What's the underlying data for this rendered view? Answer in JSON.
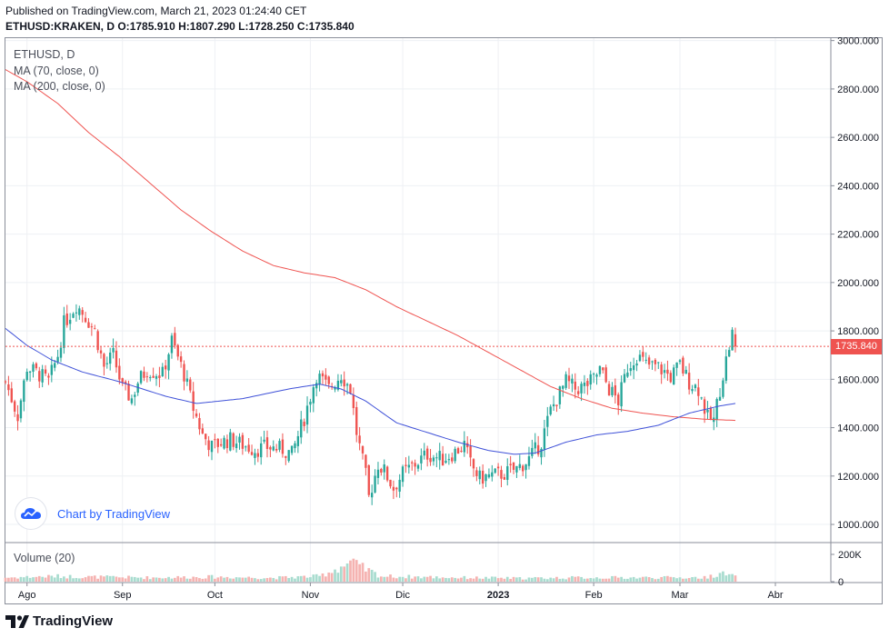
{
  "header": {
    "published": "Published on TradingView.com, March 21, 2023 01:24:40 CET",
    "symbol": "ETHUSD:KRAKEN, D",
    "open_label": "O:",
    "open": "1785.910",
    "high_label": "H:",
    "high": "1807.290",
    "low_label": "L:",
    "low": "1728.250",
    "close_label": "C:",
    "close": "1735.840"
  },
  "legend": {
    "symbol": "ETHUSD, D",
    "ma70": "MA (70, close, 0)",
    "ma200": "MA (200, close, 0)",
    "volume": "Volume (20)"
  },
  "price_tag": "1735.840",
  "badge": {
    "text": "Chart by TradingView",
    "icon": "tradingview-cloud-icon"
  },
  "footer": {
    "brand": "TradingView",
    "icon": "tradingview-logo-icon"
  },
  "colors": {
    "up": "#26a69a",
    "down": "#ef5350",
    "ma70": "#3f51d8",
    "ma200": "#ef5350",
    "current_line": "#ef5350"
  },
  "chart_data": {
    "type": "candlestick",
    "y_axis": {
      "ticks": [
        1000,
        1200,
        1400,
        1600,
        1800,
        2000,
        2200,
        2400,
        2600,
        2800,
        3000
      ],
      "tick_labels": [
        "1000.000",
        "1200.000",
        "1400.000",
        "1600.000",
        "1800.000",
        "2000.000",
        "2200.000",
        "2400.000",
        "2600.000",
        "2800.000",
        "3000.000"
      ],
      "ylim": [
        925,
        3010
      ]
    },
    "x_axis": {
      "labels": [
        "Ago",
        "Sep",
        "Oct",
        "Nov",
        "Dic",
        "2023",
        "Feb",
        "Mar",
        "Abr"
      ],
      "label_days": [
        0,
        31,
        61,
        92,
        122,
        153,
        184,
        212,
        243
      ],
      "xlim": [
        -7,
        261
      ]
    },
    "volume_axis": {
      "ticks": [
        0,
        200000
      ],
      "tick_labels": [
        "0",
        "200K"
      ],
      "ylim": [
        0,
        240000
      ]
    },
    "current_price": 1735.84,
    "anchors": [
      [
        -7,
        1590
      ],
      [
        -3,
        1450
      ],
      [
        0,
        1650
      ],
      [
        4,
        1620
      ],
      [
        7,
        1590
      ],
      [
        10,
        1700
      ],
      [
        12,
        1830
      ],
      [
        16,
        1910
      ],
      [
        19,
        1860
      ],
      [
        22,
        1800
      ],
      [
        25,
        1650
      ],
      [
        28,
        1700
      ],
      [
        31,
        1560
      ],
      [
        34,
        1520
      ],
      [
        36,
        1590
      ],
      [
        39,
        1640
      ],
      [
        44,
        1620
      ],
      [
        47,
        1760
      ],
      [
        51,
        1620
      ],
      [
        54,
        1480
      ],
      [
        57,
        1370
      ],
      [
        60,
        1320
      ],
      [
        63,
        1340
      ],
      [
        66,
        1350
      ],
      [
        70,
        1330
      ],
      [
        74,
        1310
      ],
      [
        78,
        1320
      ],
      [
        83,
        1310
      ],
      [
        86,
        1290
      ],
      [
        90,
        1440
      ],
      [
        94,
        1620
      ],
      [
        98,
        1560
      ],
      [
        102,
        1620
      ],
      [
        105,
        1560
      ],
      [
        107,
        1380
      ],
      [
        110,
        1200
      ],
      [
        111,
        1110
      ],
      [
        114,
        1250
      ],
      [
        116,
        1220
      ],
      [
        119,
        1150
      ],
      [
        122,
        1210
      ],
      [
        126,
        1250
      ],
      [
        130,
        1290
      ],
      [
        135,
        1270
      ],
      [
        139,
        1300
      ],
      [
        142,
        1330
      ],
      [
        144,
        1250
      ],
      [
        147,
        1190
      ],
      [
        150,
        1200
      ],
      [
        155,
        1210
      ],
      [
        159,
        1230
      ],
      [
        163,
        1270
      ],
      [
        167,
        1340
      ],
      [
        170,
        1470
      ],
      [
        175,
        1590
      ],
      [
        178,
        1560
      ],
      [
        181,
        1570
      ],
      [
        184,
        1600
      ],
      [
        186,
        1640
      ],
      [
        189,
        1560
      ],
      [
        192,
        1510
      ],
      [
        195,
        1650
      ],
      [
        198,
        1700
      ],
      [
        201,
        1660
      ],
      [
        205,
        1650
      ],
      [
        209,
        1610
      ],
      [
        212,
        1660
      ],
      [
        215,
        1590
      ],
      [
        218,
        1560
      ],
      [
        221,
        1440
      ],
      [
        223,
        1430
      ],
      [
        225,
        1560
      ],
      [
        227,
        1680
      ],
      [
        229,
        1790
      ],
      [
        230,
        1735.84
      ]
    ],
    "ma70_anchors": [
      [
        -7,
        1810
      ],
      [
        0,
        1740
      ],
      [
        8,
        1680
      ],
      [
        18,
        1630
      ],
      [
        30,
        1590
      ],
      [
        45,
        1530
      ],
      [
        55,
        1500
      ],
      [
        70,
        1520
      ],
      [
        85,
        1560
      ],
      [
        95,
        1580
      ],
      [
        102,
        1560
      ],
      [
        110,
        1510
      ],
      [
        120,
        1420
      ],
      [
        130,
        1380
      ],
      [
        140,
        1340
      ],
      [
        150,
        1305
      ],
      [
        158,
        1290
      ],
      [
        165,
        1295
      ],
      [
        175,
        1340
      ],
      [
        185,
        1370
      ],
      [
        195,
        1385
      ],
      [
        205,
        1410
      ],
      [
        215,
        1460
      ],
      [
        225,
        1490
      ],
      [
        230,
        1500
      ]
    ],
    "ma200_anchors": [
      [
        -7,
        2880
      ],
      [
        0,
        2830
      ],
      [
        10,
        2740
      ],
      [
        20,
        2620
      ],
      [
        30,
        2520
      ],
      [
        40,
        2410
      ],
      [
        50,
        2300
      ],
      [
        60,
        2210
      ],
      [
        70,
        2130
      ],
      [
        80,
        2070
      ],
      [
        90,
        2040
      ],
      [
        100,
        2020
      ],
      [
        110,
        1970
      ],
      [
        120,
        1900
      ],
      [
        130,
        1840
      ],
      [
        140,
        1780
      ],
      [
        150,
        1710
      ],
      [
        160,
        1640
      ],
      [
        170,
        1570
      ],
      [
        180,
        1520
      ],
      [
        190,
        1480
      ],
      [
        200,
        1460
      ],
      [
        210,
        1445
      ],
      [
        220,
        1435
      ],
      [
        230,
        1430
      ]
    ],
    "vol_anchors": [
      [
        -7,
        30000
      ],
      [
        10,
        40000
      ],
      [
        20,
        35000
      ],
      [
        40,
        30000
      ],
      [
        60,
        35000
      ],
      [
        80,
        28000
      ],
      [
        95,
        40000
      ],
      [
        105,
        140000
      ],
      [
        108,
        110000
      ],
      [
        115,
        40000
      ],
      [
        140,
        30000
      ],
      [
        160,
        25000
      ],
      [
        180,
        30000
      ],
      [
        200,
        30000
      ],
      [
        220,
        30000
      ],
      [
        225,
        60000
      ],
      [
        230,
        40000
      ]
    ]
  }
}
